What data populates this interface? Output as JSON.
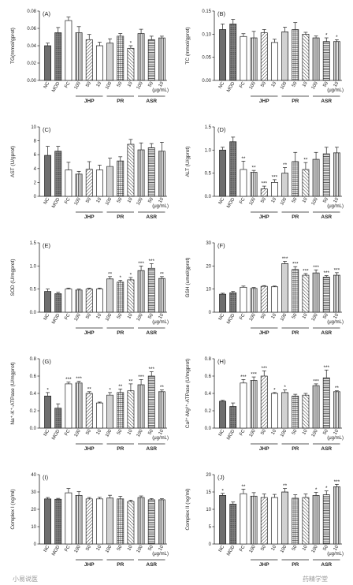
{
  "watermarks": {
    "left": "小易说医",
    "right": "药精学堂"
  },
  "chart_data": [
    {
      "type": "bar",
      "panel": "(A)",
      "ylabel": "TG(mmol/gprot)",
      "ylim": [
        0,
        0.08
      ],
      "yticks": [
        "0.00",
        "0.02",
        "0.04",
        "0.06",
        "0.08"
      ],
      "categories": [
        "NC",
        "MOD",
        "FC",
        "100",
        "50",
        "10",
        "100",
        "50",
        "10",
        "100",
        "50",
        "10"
      ],
      "groups": [
        {
          "name": "JHP",
          "from": 3,
          "to": 5
        },
        {
          "name": "PR",
          "from": 6,
          "to": 8
        },
        {
          "name": "ASR",
          "from": 9,
          "to": 11
        }
      ],
      "unit": "(μg/mL)",
      "values": [
        0.04,
        0.055,
        0.069,
        0.055,
        0.047,
        0.04,
        0.043,
        0.051,
        0.037,
        0.054,
        0.047,
        0.049
      ],
      "errors": [
        0.003,
        0.006,
        0.004,
        0.007,
        0.006,
        0.004,
        0.005,
        0.003,
        0.003,
        0.005,
        0.004,
        0.002
      ],
      "stars": [
        "",
        "",
        "",
        "",
        "",
        "",
        "",
        "",
        "*",
        "",
        "",
        ""
      ]
    },
    {
      "type": "bar",
      "panel": "(B)",
      "ylabel": "TC (mmol/gprot)",
      "ylim": [
        0,
        0.15
      ],
      "yticks": [
        "0.00",
        "0.05",
        "0.10",
        "0.15"
      ],
      "categories": [
        "NC",
        "MOD",
        "FC",
        "100",
        "50",
        "10",
        "100",
        "50",
        "10",
        "100",
        "50",
        "10"
      ],
      "groups": [
        {
          "name": "JHP",
          "from": 3,
          "to": 5
        },
        {
          "name": "PR",
          "from": 6,
          "to": 8
        },
        {
          "name": "ASR",
          "from": 9,
          "to": 11
        }
      ],
      "unit": "(μg/mL)",
      "values": [
        0.11,
        0.122,
        0.095,
        0.092,
        0.103,
        0.082,
        0.105,
        0.11,
        0.1,
        0.092,
        0.084,
        0.084
      ],
      "errors": [
        0.012,
        0.01,
        0.006,
        0.014,
        0.007,
        0.007,
        0.01,
        0.015,
        0.004,
        0.004,
        0.008,
        0.004
      ],
      "stars": [
        "",
        "",
        "",
        "",
        "",
        "",
        "",
        "",
        "",
        "",
        "*",
        "*"
      ]
    },
    {
      "type": "bar",
      "panel": "(C)",
      "ylabel": "AST (U/gprot)",
      "ylim": [
        0,
        10
      ],
      "yticks": [
        "0",
        "2",
        "4",
        "6",
        "8",
        "10"
      ],
      "categories": [
        "NC",
        "MOD",
        "FC",
        "100",
        "50",
        "10",
        "100",
        "50",
        "10",
        "100",
        "50",
        "10"
      ],
      "groups": [
        {
          "name": "JHP",
          "from": 3,
          "to": 5
        },
        {
          "name": "PR",
          "from": 6,
          "to": 8
        },
        {
          "name": "ASR",
          "from": 9,
          "to": 11
        }
      ],
      "unit": "(μg/mL)",
      "values": [
        5.9,
        6.5,
        3.8,
        3.2,
        3.9,
        3.8,
        4.3,
        5.1,
        7.5,
        6.7,
        7.0,
        6.5
      ],
      "errors": [
        1.3,
        0.7,
        1.1,
        0.4,
        1.1,
        0.7,
        1.2,
        0.6,
        0.7,
        1.0,
        0.6,
        1.3
      ],
      "stars": [
        "",
        "",
        "",
        "",
        "",
        "",
        "",
        "",
        "",
        "",
        "",
        ""
      ]
    },
    {
      "type": "bar",
      "panel": "(D)",
      "ylabel": "ALT (U/gprot)",
      "ylim": [
        0,
        1.5
      ],
      "yticks": [
        "0.0",
        "0.5",
        "1.0",
        "1.5"
      ],
      "categories": [
        "NC",
        "MOD",
        "FC",
        "100",
        "50",
        "10",
        "100",
        "50",
        "10",
        "100",
        "50",
        "10"
      ],
      "groups": [
        {
          "name": "JHP",
          "from": 3,
          "to": 5
        },
        {
          "name": "PR",
          "from": 6,
          "to": 8
        },
        {
          "name": "ASR",
          "from": 9,
          "to": 11
        }
      ],
      "unit": "(μg/mL)",
      "values": [
        1.0,
        1.18,
        0.58,
        0.52,
        0.16,
        0.3,
        0.5,
        0.75,
        0.58,
        0.8,
        0.92,
        0.94
      ],
      "errors": [
        0.06,
        0.1,
        0.18,
        0.04,
        0.06,
        0.06,
        0.12,
        0.2,
        0.15,
        0.15,
        0.14,
        0.12
      ],
      "stars": [
        "",
        "",
        "**",
        "**",
        "***",
        "***",
        "**",
        "",
        "**",
        "",
        "",
        ""
      ]
    },
    {
      "type": "bar",
      "panel": "(E)",
      "ylabel": "SOD (U/mgprot)",
      "ylim": [
        0,
        1.5
      ],
      "yticks": [
        "0.0",
        "0.5",
        "1.0",
        "1.5"
      ],
      "categories": [
        "NC",
        "MOD",
        "FC",
        "100",
        "50",
        "10",
        "100",
        "50",
        "10",
        "100",
        "50",
        "10"
      ],
      "groups": [
        {
          "name": "JHP",
          "from": 3,
          "to": 5
        },
        {
          "name": "PR",
          "from": 6,
          "to": 8
        },
        {
          "name": "ASR",
          "from": 9,
          "to": 11
        }
      ],
      "unit": "(μg/mL)",
      "values": [
        0.45,
        0.4,
        0.5,
        0.48,
        0.5,
        0.5,
        0.72,
        0.65,
        0.7,
        0.9,
        0.95,
        0.73
      ],
      "errors": [
        0.05,
        0.03,
        0.02,
        0.02,
        0.02,
        0.02,
        0.05,
        0.04,
        0.05,
        0.1,
        0.1,
        0.04
      ],
      "stars": [
        "",
        "",
        "",
        "",
        "",
        "",
        "**",
        "*",
        "*",
        "***",
        "***",
        "**"
      ]
    },
    {
      "type": "bar",
      "panel": "(F)",
      "ylabel": "GSH (umol/gprot)",
      "ylim": [
        0,
        30
      ],
      "yticks": [
        "0",
        "10",
        "20",
        "30"
      ],
      "categories": [
        "NC",
        "MOD",
        "FC",
        "100",
        "50",
        "10",
        "100",
        "50",
        "10",
        "100",
        "50",
        "10"
      ],
      "groups": [
        {
          "name": "JHP",
          "from": 3,
          "to": 5
        },
        {
          "name": "PR",
          "from": 6,
          "to": 8
        },
        {
          "name": "ASR",
          "from": 9,
          "to": 11
        }
      ],
      "unit": "(μg/mL)",
      "values": [
        7.8,
        8.4,
        10.8,
        10.3,
        11.2,
        11.0,
        21.0,
        18.5,
        16.0,
        17.0,
        15.2,
        16.0
      ],
      "errors": [
        0.4,
        0.6,
        0.5,
        0.4,
        0.3,
        0.3,
        1.0,
        1.2,
        0.7,
        1.3,
        0.6,
        1.1
      ],
      "stars": [
        "",
        "",
        "",
        "",
        "",
        "",
        "***",
        "***",
        "***",
        "***",
        "***",
        "***"
      ]
    },
    {
      "type": "bar",
      "panel": "(G)",
      "ylabel": "Na⁺-K⁺-ATPase (U/mgprot)",
      "ylim": [
        0,
        0.8
      ],
      "yticks": [
        "0.0",
        "0.2",
        "0.4",
        "0.6",
        "0.8"
      ],
      "categories": [
        "NC",
        "MOD",
        "FC",
        "100",
        "50",
        "10",
        "100",
        "50",
        "10",
        "100",
        "50",
        "10"
      ],
      "groups": [
        {
          "name": "JHP",
          "from": 3,
          "to": 5
        },
        {
          "name": "PR",
          "from": 6,
          "to": 8
        },
        {
          "name": "ASR",
          "from": 9,
          "to": 11
        }
      ],
      "unit": "(μg/mL)",
      "values": [
        0.37,
        0.23,
        0.51,
        0.52,
        0.4,
        0.29,
        0.38,
        0.41,
        0.43,
        0.5,
        0.6,
        0.42
      ],
      "errors": [
        0.04,
        0.05,
        0.02,
        0.02,
        0.02,
        0.01,
        0.03,
        0.04,
        0.08,
        0.06,
        0.05,
        0.02
      ],
      "stars": [
        "*",
        "",
        "***",
        "***",
        "**",
        "",
        "*",
        "**",
        "**",
        "***",
        "***",
        "**"
      ]
    },
    {
      "type": "bar",
      "panel": "(H)",
      "ylabel": "Ca²⁺-Mg²⁺-ATPase (U/mgprot)",
      "ylim": [
        0,
        0.8
      ],
      "yticks": [
        "0.0",
        "0.2",
        "0.4",
        "0.6",
        "0.8"
      ],
      "categories": [
        "NC",
        "MOD",
        "FC",
        "100",
        "50",
        "10",
        "100",
        "50",
        "10",
        "100",
        "50",
        "10"
      ],
      "groups": [
        {
          "name": "JHP",
          "from": 3,
          "to": 5
        },
        {
          "name": "PR",
          "from": 6,
          "to": 8
        },
        {
          "name": "ASR",
          "from": 9,
          "to": 11
        }
      ],
      "unit": "(μg/mL)",
      "values": [
        0.31,
        0.25,
        0.52,
        0.55,
        0.6,
        0.4,
        0.41,
        0.37,
        0.38,
        0.49,
        0.58,
        0.42
      ],
      "errors": [
        0.01,
        0.04,
        0.04,
        0.04,
        0.06,
        0.01,
        0.03,
        0.02,
        0.02,
        0.02,
        0.09,
        0.01
      ],
      "stars": [
        "",
        "",
        "***",
        "***",
        "***",
        "*",
        "*",
        "",
        "",
        "***",
        "***",
        "**"
      ]
    },
    {
      "type": "bar",
      "panel": "(I)",
      "ylabel": "Complex I (ng/ml)",
      "ylim": [
        0,
        40
      ],
      "yticks": [
        "0",
        "10",
        "20",
        "30",
        "40"
      ],
      "categories": [
        "NC",
        "MOD",
        "FC",
        "100",
        "50",
        "10",
        "100",
        "50",
        "10",
        "100",
        "50",
        "10"
      ],
      "groups": [
        {
          "name": "JHP",
          "from": 3,
          "to": 5
        },
        {
          "name": "PR",
          "from": 6,
          "to": 8
        },
        {
          "name": "ASR",
          "from": 9,
          "to": 11
        }
      ],
      "unit": "(μg/mL)",
      "values": [
        26.0,
        25.8,
        29.5,
        28.0,
        26.0,
        26.0,
        26.5,
        26.0,
        24.5,
        26.8,
        25.5,
        25.5
      ],
      "errors": [
        0.8,
        0.5,
        2.5,
        2.2,
        0.8,
        0.9,
        1.6,
        1.5,
        0.8,
        0.9,
        0.7,
        0.6
      ],
      "stars": [
        "",
        "",
        "",
        "",
        "",
        "",
        "",
        "",
        "",
        "",
        "",
        ""
      ]
    },
    {
      "type": "bar",
      "panel": "(J)",
      "ylabel": "Complex II (ng/ml)",
      "ylim": [
        0,
        20
      ],
      "yticks": [
        "0",
        "5",
        "10",
        "15",
        "20"
      ],
      "categories": [
        "NC",
        "MOD",
        "FC",
        "100",
        "50",
        "10",
        "100",
        "50",
        "10",
        "100",
        "50",
        "10"
      ],
      "groups": [
        {
          "name": "JHP",
          "from": 3,
          "to": 5
        },
        {
          "name": "PR",
          "from": 6,
          "to": 8
        },
        {
          "name": "ASR",
          "from": 9,
          "to": 11
        }
      ],
      "unit": "(μg/mL)",
      "values": [
        14.0,
        11.5,
        14.5,
        13.8,
        13.4,
        13.4,
        15.0,
        13.2,
        13.4,
        14.0,
        14.2,
        16.5
      ],
      "errors": [
        0.6,
        0.6,
        1.3,
        1.0,
        1.0,
        0.9,
        1.0,
        1.0,
        1.0,
        0.9,
        1.1,
        0.7
      ],
      "stars": [
        "*",
        "",
        "**",
        "",
        "",
        "",
        "**",
        "",
        "",
        "*",
        "*",
        "***"
      ]
    }
  ]
}
